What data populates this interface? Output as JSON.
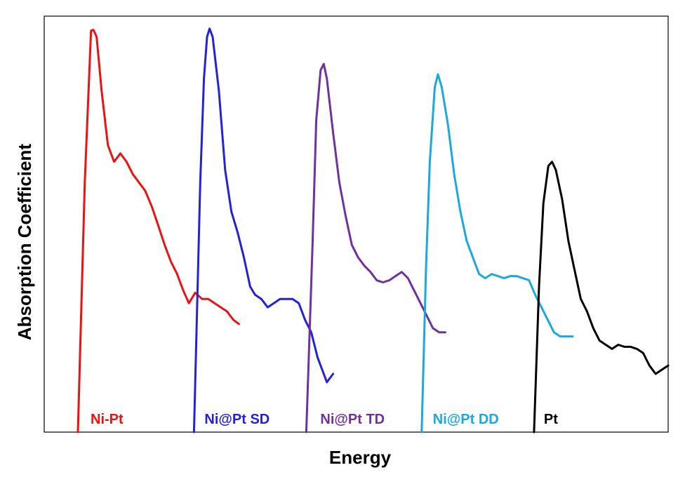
{
  "chart_data": {
    "type": "line",
    "title": "",
    "xlabel": "Energy",
    "ylabel": "Absorption Coefficient",
    "xlim": [
      0,
      100
    ],
    "ylim": [
      0,
      100
    ],
    "grid": false,
    "legend": "none",
    "x_ticks_shown": false,
    "y_ticks_shown": false,
    "series": [
      {
        "name": "Ni-Pt",
        "color": "#ee1111",
        "points": [
          [
            5.4,
            0
          ],
          [
            6.5,
            60
          ],
          [
            7.5,
            96.5
          ],
          [
            7.9,
            96.7
          ],
          [
            8.4,
            95
          ],
          [
            9.2,
            82
          ],
          [
            10.2,
            69
          ],
          [
            11.2,
            65
          ],
          [
            12.2,
            67
          ],
          [
            13.2,
            65
          ],
          [
            14.2,
            62
          ],
          [
            15.2,
            60
          ],
          [
            16.2,
            58
          ],
          [
            17.3,
            54
          ],
          [
            18.2,
            50
          ],
          [
            19.3,
            45
          ],
          [
            20.3,
            41
          ],
          [
            21.3,
            38
          ],
          [
            22.3,
            34
          ],
          [
            23.2,
            31
          ],
          [
            24.2,
            33.5
          ],
          [
            25.3,
            32
          ],
          [
            26.3,
            32
          ],
          [
            27.3,
            31
          ],
          [
            28.3,
            30
          ],
          [
            29.3,
            29
          ],
          [
            30.3,
            27
          ],
          [
            31.2,
            26
          ]
        ]
      },
      {
        "name": "Ni@Pt SD",
        "color": "#2222dd",
        "points": [
          [
            24.0,
            0
          ],
          [
            25.0,
            60
          ],
          [
            25.6,
            85
          ],
          [
            26.1,
            95
          ],
          [
            26.5,
            97
          ],
          [
            27.0,
            95
          ],
          [
            28.0,
            82
          ],
          [
            29.0,
            63
          ],
          [
            30.0,
            53
          ],
          [
            31.0,
            48
          ],
          [
            32.0,
            42
          ],
          [
            33.0,
            35
          ],
          [
            33.8,
            33
          ],
          [
            34.8,
            32
          ],
          [
            35.8,
            30
          ],
          [
            36.8,
            31
          ],
          [
            37.8,
            32
          ],
          [
            38.8,
            32
          ],
          [
            39.8,
            32
          ],
          [
            40.8,
            31
          ],
          [
            41.8,
            27
          ],
          [
            42.8,
            24
          ],
          [
            43.8,
            18
          ],
          [
            44.8,
            14
          ],
          [
            45.3,
            12
          ],
          [
            45.8,
            13
          ],
          [
            46.3,
            14
          ]
        ]
      },
      {
        "name": "Ni@Pt TD",
        "color": "#7030a0",
        "points": [
          [
            42.0,
            0
          ],
          [
            43.0,
            45
          ],
          [
            43.6,
            75
          ],
          [
            44.3,
            87
          ],
          [
            44.8,
            88.5
          ],
          [
            45.3,
            85
          ],
          [
            46.3,
            72
          ],
          [
            47.3,
            60
          ],
          [
            48.3,
            52
          ],
          [
            49.3,
            45
          ],
          [
            50.3,
            42
          ],
          [
            51.3,
            40
          ],
          [
            52.3,
            38.5
          ],
          [
            53.3,
            36.5
          ],
          [
            54.3,
            36
          ],
          [
            55.3,
            36.5
          ],
          [
            56.3,
            37.5
          ],
          [
            57.3,
            38.5
          ],
          [
            58.3,
            37
          ],
          [
            59.3,
            34
          ],
          [
            60.3,
            31
          ],
          [
            61.3,
            28
          ],
          [
            62.3,
            25
          ],
          [
            63.3,
            24
          ],
          [
            64.3,
            24
          ]
        ]
      },
      {
        "name": "Ni@Pt DD",
        "color": "#1ba8e0",
        "points": [
          [
            60.5,
            0
          ],
          [
            61.2,
            40
          ],
          [
            61.8,
            65
          ],
          [
            62.6,
            83
          ],
          [
            63.1,
            86
          ],
          [
            63.7,
            83
          ],
          [
            64.7,
            74
          ],
          [
            65.7,
            62
          ],
          [
            66.7,
            53
          ],
          [
            67.7,
            46
          ],
          [
            68.7,
            42
          ],
          [
            69.7,
            38
          ],
          [
            70.7,
            37
          ],
          [
            71.7,
            38
          ],
          [
            72.7,
            37.5
          ],
          [
            73.7,
            37
          ],
          [
            74.7,
            37.5
          ],
          [
            75.7,
            37.5
          ],
          [
            76.7,
            37
          ],
          [
            77.7,
            36.5
          ],
          [
            78.7,
            33
          ],
          [
            79.7,
            30
          ],
          [
            80.7,
            27
          ],
          [
            81.7,
            24
          ],
          [
            82.7,
            23
          ],
          [
            83.7,
            23
          ],
          [
            84.7,
            23
          ]
        ]
      },
      {
        "name": "Pt",
        "color": "#000000",
        "points": [
          [
            78.5,
            0
          ],
          [
            79.3,
            35
          ],
          [
            80.0,
            55
          ],
          [
            80.8,
            64
          ],
          [
            81.4,
            65
          ],
          [
            82.0,
            63
          ],
          [
            83.0,
            56
          ],
          [
            84.0,
            46
          ],
          [
            85.0,
            39
          ],
          [
            86.0,
            32
          ],
          [
            87.0,
            29
          ],
          [
            88.0,
            25
          ],
          [
            89.0,
            22
          ],
          [
            90.0,
            21
          ],
          [
            91.0,
            20
          ],
          [
            92.0,
            21
          ],
          [
            93.0,
            20.5
          ],
          [
            94.0,
            20.5
          ],
          [
            95.0,
            20
          ],
          [
            96.0,
            19
          ],
          [
            97.0,
            16
          ],
          [
            98.0,
            14
          ],
          [
            99.0,
            15
          ],
          [
            100.0,
            16
          ]
        ]
      }
    ]
  }
}
